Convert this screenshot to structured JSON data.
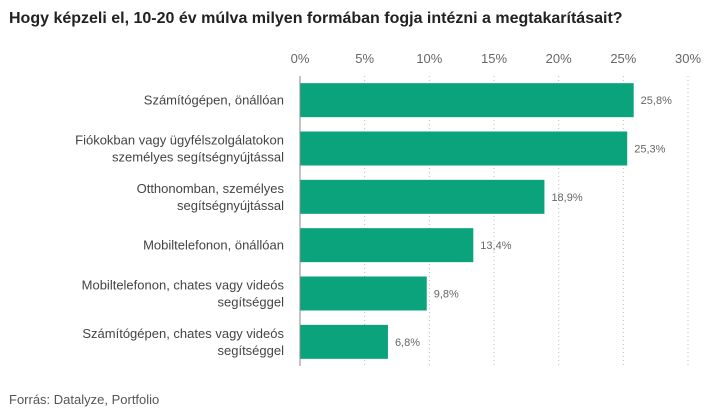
{
  "chart_data": {
    "type": "bar",
    "orientation": "horizontal",
    "title": "Hogy képzeli el, 10-20 év múlva milyen formában fogja intézni a megtakarításait?",
    "categories": [
      [
        "Számítógépen, önállóan"
      ],
      [
        "Fiókokban vagy ügyfélszolgálatokon",
        "személyes segítségnyújtással"
      ],
      [
        "Otthonomban, személyes",
        "segítségnyújtással"
      ],
      [
        "Mobiltelefonon, önállóan"
      ],
      [
        "Mobiltelefonon, chates vagy videós",
        "segítséggel"
      ],
      [
        "Számítógépen, chates vagy videós",
        "segítséggel"
      ]
    ],
    "values": [
      25.8,
      25.3,
      18.9,
      13.4,
      9.8,
      6.8
    ],
    "value_labels": [
      "25,8%",
      "25,3%",
      "18,9%",
      "13,4%",
      "9,8%",
      "6,8%"
    ],
    "xlim": [
      0,
      30
    ],
    "x_ticks": [
      0,
      5,
      10,
      15,
      20,
      25,
      30
    ],
    "x_tick_labels": [
      "0%",
      "5%",
      "10%",
      "15%",
      "20%",
      "25%",
      "30%"
    ],
    "x_axis_position": "top",
    "grid": "vertical dotted",
    "bar_color": "#0aa37c",
    "source": "Forrás: Datalyze, Portfolio"
  }
}
